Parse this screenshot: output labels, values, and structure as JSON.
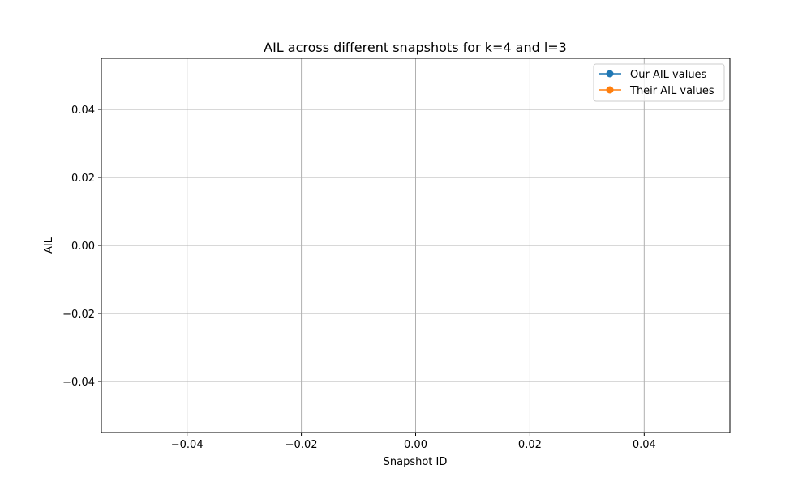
{
  "chart_data": {
    "type": "line",
    "title": "AIL across different snapshots for k=4 and l=3",
    "xlabel": "Snapshot ID",
    "ylabel": "AIL",
    "xlim": [
      -0.055,
      0.055
    ],
    "ylim": [
      -0.055,
      0.055
    ],
    "x_ticks": [
      -0.04,
      -0.02,
      0.0,
      0.02,
      0.04
    ],
    "x_tick_labels": [
      "−0.04",
      "−0.02",
      "0.00",
      "0.02",
      "0.04"
    ],
    "y_ticks": [
      -0.04,
      -0.02,
      0.0,
      0.02,
      0.04
    ],
    "y_tick_labels": [
      "−0.04",
      "−0.02",
      "0.00",
      "0.02",
      "0.04"
    ],
    "grid": true,
    "legend_position": "top-right",
    "series": [
      {
        "name": "Our AIL values",
        "color": "#1f77b4",
        "marker": "circle",
        "x": [],
        "y": []
      },
      {
        "name": "Their AIL values",
        "color": "#ff7f0e",
        "marker": "circle",
        "x": [],
        "y": []
      }
    ]
  }
}
